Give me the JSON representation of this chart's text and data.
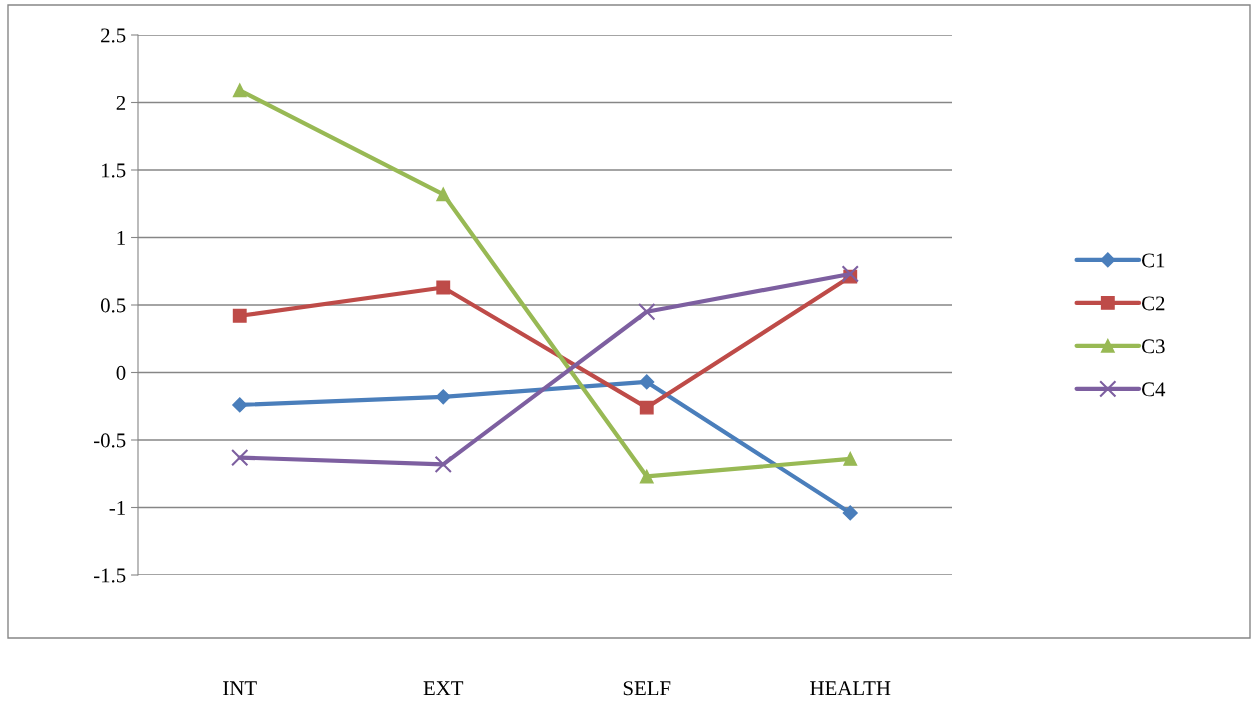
{
  "chart_data": {
    "type": "line",
    "categories": [
      "INT",
      "EXT",
      "SELF",
      "HEALTH"
    ],
    "series": [
      {
        "name": "C1",
        "color": "#4a7ebb",
        "marker": "diamond",
        "values": [
          -0.24,
          -0.18,
          -0.07,
          -1.04
        ]
      },
      {
        "name": "C2",
        "color": "#be4b48",
        "marker": "square",
        "values": [
          0.42,
          0.63,
          -0.26,
          0.71
        ]
      },
      {
        "name": "C3",
        "color": "#98b954",
        "marker": "triangle",
        "values": [
          2.09,
          1.32,
          -0.77,
          -0.64
        ]
      },
      {
        "name": "C4",
        "color": "#7d5fa0",
        "marker": "cross",
        "values": [
          -0.63,
          -0.68,
          0.45,
          0.73
        ]
      }
    ],
    "ylim": [
      -1.5,
      2.5
    ],
    "yticks": [
      -1.5,
      -1,
      -0.5,
      0,
      0.5,
      1,
      1.5,
      2,
      2.5
    ],
    "grid": "y",
    "legend": "right"
  }
}
